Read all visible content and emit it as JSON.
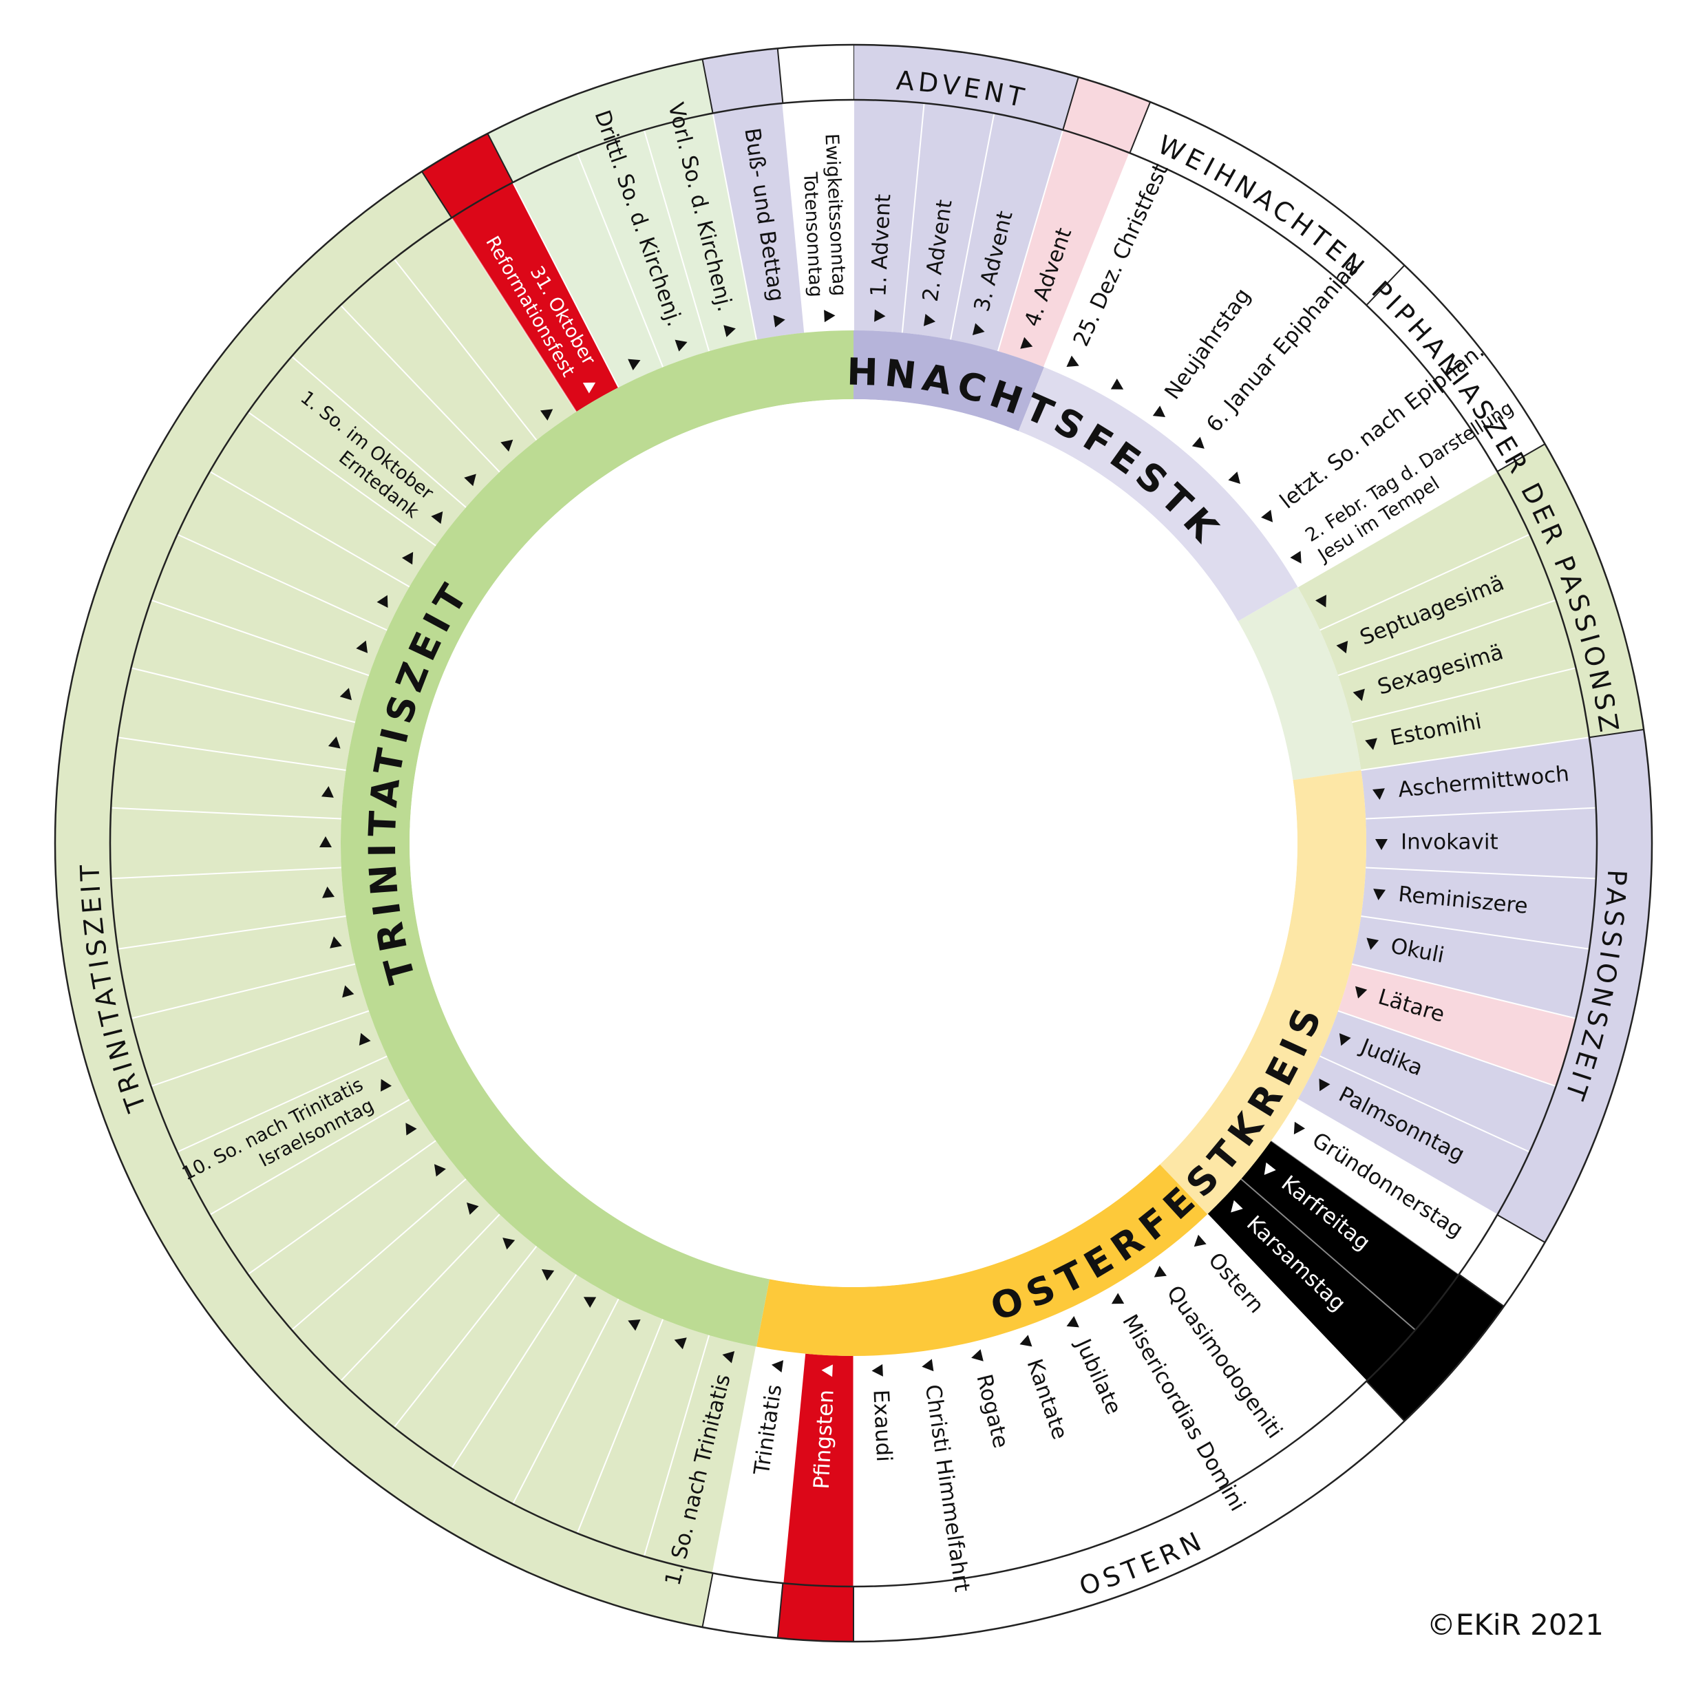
{
  "title": "",
  "copyright": "©EKiR 2021",
  "colors": {
    "green_light": "#dfe9c6",
    "green_lighter": "#e3efd9",
    "green_inner": "#bcdb93",
    "green_inner_pale": "#e7f0dc",
    "lavender": "#d5d3e9",
    "lavender_inner": "#b6b4da",
    "lavender_inner_pale": "#dedcee",
    "pink": "#f8d8de",
    "red": "#dc0718",
    "black": "#000000",
    "white": "#ffffff",
    "yellow": "#fdc93a",
    "yellow_pale": "#fde7a6",
    "line": "#222222"
  },
  "rings": {
    "inner": [
      "WEIHNACHTSFESTKREIS",
      "OSTERFESTKREIS",
      "TRINITATISZEIT"
    ],
    "outer": [
      "ADVENT",
      "WEIHNACHTEN",
      "EPIPHANIASZEIT",
      "VOR DER PASSIONSZEIT",
      "PASSIONSZEIT",
      "OSTERN",
      "TRINITATISZEIT"
    ]
  },
  "days": [
    {
      "label": "1. Advent",
      "label2": "",
      "color": "lavender",
      "text": "dark"
    },
    {
      "label": "2. Advent",
      "label2": "",
      "color": "lavender",
      "text": "dark"
    },
    {
      "label": "3. Advent",
      "label2": "",
      "color": "lavender",
      "text": "dark"
    },
    {
      "label": "4. Advent",
      "label2": "",
      "color": "pink",
      "text": "dark"
    },
    {
      "label": "25. Dez. Christfest",
      "label2": "",
      "color": "white",
      "text": "dark"
    },
    {
      "label": "",
      "label2": "",
      "color": "white",
      "text": "dark"
    },
    {
      "label": "Neujahrstag",
      "label2": "",
      "color": "white",
      "text": "dark"
    },
    {
      "label": "6. Januar Epiphanias",
      "label2": "",
      "color": "white",
      "text": "dark"
    },
    {
      "label": "",
      "label2": "",
      "color": "white",
      "text": "dark"
    },
    {
      "label": "letzt. So. nach Epiphan.",
      "label2": "",
      "color": "white",
      "text": "dark"
    },
    {
      "label": "2. Febr. Tag d. Darstellung",
      "label2": "Jesu im Tempel",
      "color": "white",
      "text": "dark"
    },
    {
      "label": "",
      "label2": "",
      "color": "green",
      "text": "dark"
    },
    {
      "label": "Septuagesimä",
      "label2": "",
      "color": "green",
      "text": "dark"
    },
    {
      "label": "Sexagesimä",
      "label2": "",
      "color": "green",
      "text": "dark"
    },
    {
      "label": "Estomihi",
      "label2": "",
      "color": "green",
      "text": "dark"
    },
    {
      "label": "Aschermittwoch",
      "label2": "",
      "color": "lavender",
      "text": "dark"
    },
    {
      "label": "Invokavit",
      "label2": "",
      "color": "lavender",
      "text": "dark"
    },
    {
      "label": "Reminiszere",
      "label2": "",
      "color": "lavender",
      "text": "dark"
    },
    {
      "label": "Okuli",
      "label2": "",
      "color": "lavender",
      "text": "dark"
    },
    {
      "label": "Lätare",
      "label2": "",
      "color": "pink",
      "text": "dark"
    },
    {
      "label": "Judika",
      "label2": "",
      "color": "lavender",
      "text": "dark"
    },
    {
      "label": "Palmsonntag",
      "label2": "",
      "color": "lavender",
      "text": "dark"
    },
    {
      "label": "Gründonnerstag",
      "label2": "",
      "color": "white",
      "text": "dark"
    },
    {
      "label": "Karfreitag",
      "label2": "",
      "color": "black",
      "text": "light"
    },
    {
      "label": "Karsamstag",
      "label2": "",
      "color": "black",
      "text": "light"
    },
    {
      "label": "Ostern",
      "label2": "",
      "color": "white",
      "text": "dark"
    },
    {
      "label": "Quasimodogeniti",
      "label2": "",
      "color": "white",
      "text": "dark"
    },
    {
      "label": "Misericordias Domini",
      "label2": "",
      "color": "white",
      "text": "dark"
    },
    {
      "label": "Jubilate",
      "label2": "",
      "color": "white",
      "text": "dark"
    },
    {
      "label": "Kantate",
      "label2": "",
      "color": "white",
      "text": "dark"
    },
    {
      "label": "Rogate",
      "label2": "",
      "color": "white",
      "text": "dark"
    },
    {
      "label": "Christi Himmelfahrt",
      "label2": "",
      "color": "white",
      "text": "dark"
    },
    {
      "label": "Exaudi",
      "label2": "",
      "color": "white",
      "text": "dark"
    },
    {
      "label": "Pfingsten",
      "label2": "",
      "color": "red",
      "text": "light"
    },
    {
      "label": "Trinitatis",
      "label2": "",
      "color": "white",
      "text": "dark"
    },
    {
      "label": "1. So. nach Trinitatis",
      "label2": "",
      "color": "green",
      "text": "dark"
    },
    {
      "label": "",
      "label2": "",
      "color": "green",
      "text": "dark"
    },
    {
      "label": "",
      "label2": "",
      "color": "green",
      "text": "dark"
    },
    {
      "label": "",
      "label2": "",
      "color": "green",
      "text": "dark"
    },
    {
      "label": "",
      "label2": "",
      "color": "green",
      "text": "dark"
    },
    {
      "label": "",
      "label2": "",
      "color": "green",
      "text": "dark"
    },
    {
      "label": "",
      "label2": "",
      "color": "green",
      "text": "dark"
    },
    {
      "label": "",
      "label2": "",
      "color": "green",
      "text": "dark"
    },
    {
      "label": "",
      "label2": "",
      "color": "green",
      "text": "dark"
    },
    {
      "label": "10. So. nach Trinitatis",
      "label2": "Israelsonntag",
      "color": "green",
      "text": "dark"
    },
    {
      "label": "",
      "label2": "",
      "color": "green",
      "text": "dark"
    },
    {
      "label": "",
      "label2": "",
      "color": "green",
      "text": "dark"
    },
    {
      "label": "",
      "label2": "",
      "color": "green",
      "text": "dark"
    },
    {
      "label": "",
      "label2": "",
      "color": "green",
      "text": "dark"
    },
    {
      "label": "",
      "label2": "",
      "color": "green",
      "text": "dark"
    },
    {
      "label": "",
      "label2": "",
      "color": "green",
      "text": "dark"
    },
    {
      "label": "",
      "label2": "",
      "color": "green",
      "text": "dark"
    },
    {
      "label": "",
      "label2": "",
      "color": "green",
      "text": "dark"
    },
    {
      "label": "",
      "label2": "",
      "color": "green",
      "text": "dark"
    },
    {
      "label": "",
      "label2": "",
      "color": "green",
      "text": "dark"
    },
    {
      "label": "",
      "label2": "",
      "color": "green",
      "text": "dark"
    },
    {
      "label": "1. So. im Oktober",
      "label2": "Erntedank",
      "color": "green",
      "text": "dark"
    },
    {
      "label": "",
      "label2": "",
      "color": "green",
      "text": "dark"
    },
    {
      "label": "",
      "label2": "",
      "color": "green",
      "text": "dark"
    },
    {
      "label": "",
      "label2": "",
      "color": "green",
      "text": "dark"
    },
    {
      "label": "31. Oktober",
      "label2": "Reformationsfest",
      "color": "red",
      "text": "light"
    },
    {
      "label": "",
      "label2": "",
      "color": "green2",
      "text": "dark"
    },
    {
      "label": "Drittl. So. d. Kirchenj.",
      "label2": "",
      "color": "green2",
      "text": "dark"
    },
    {
      "label": "Vorl. So. d. Kirchenj.",
      "label2": "",
      "color": "green2",
      "text": "dark"
    },
    {
      "label": "Buß- und Bettag",
      "label2": "",
      "color": "lavender",
      "text": "dark"
    },
    {
      "label": "Ewigkeitssonntag",
      "label2": "Totensonntag",
      "color": "white",
      "text": "dark"
    }
  ]
}
